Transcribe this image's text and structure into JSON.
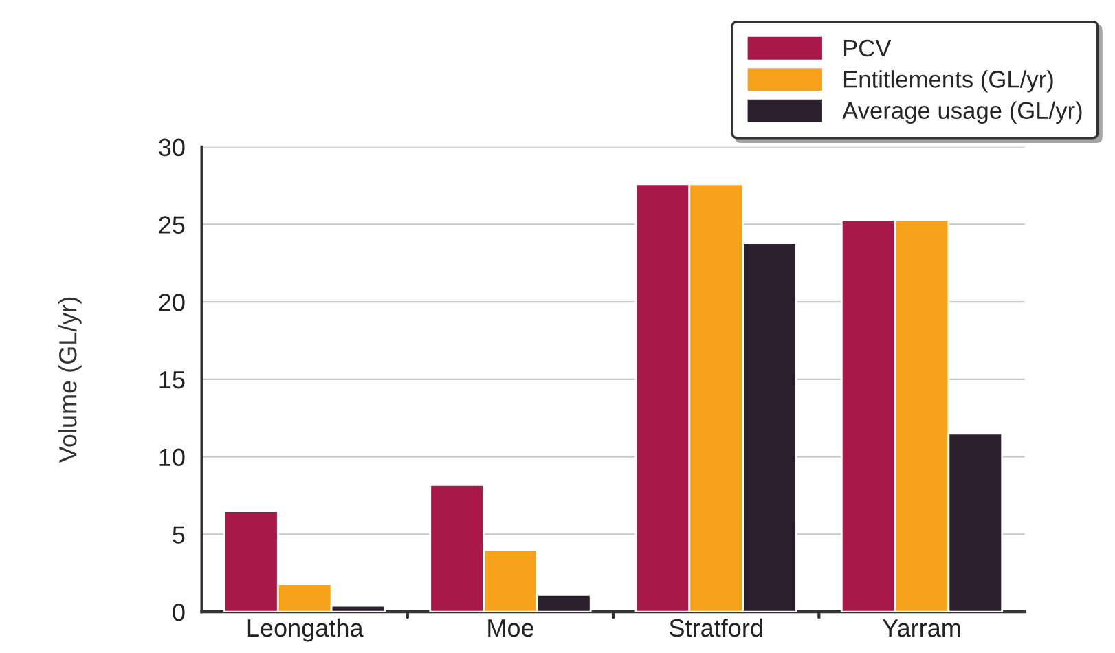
{
  "chart_data": {
    "type": "bar",
    "ylabel": "Volume (GL/yr)",
    "categories": [
      "Leongatha",
      "Moe",
      "Stratford",
      "Yarram"
    ],
    "series": [
      {
        "name": "PCV",
        "color": "#a8194a",
        "values": [
          6.5,
          8.2,
          27.6,
          25.3
        ]
      },
      {
        "name": "Entitlements (GL/yr)",
        "color": "#f7a21b",
        "values": [
          1.8,
          4.0,
          27.6,
          25.3
        ]
      },
      {
        "name": "Average usage (GL/yr)",
        "color": "#2b1f2e",
        "values": [
          0.4,
          1.1,
          23.8,
          11.5
        ]
      }
    ],
    "ylim": [
      0,
      30
    ],
    "yticks": [
      0,
      5,
      10,
      15,
      20,
      25,
      30
    ],
    "grid": "y",
    "legend": "top right"
  }
}
